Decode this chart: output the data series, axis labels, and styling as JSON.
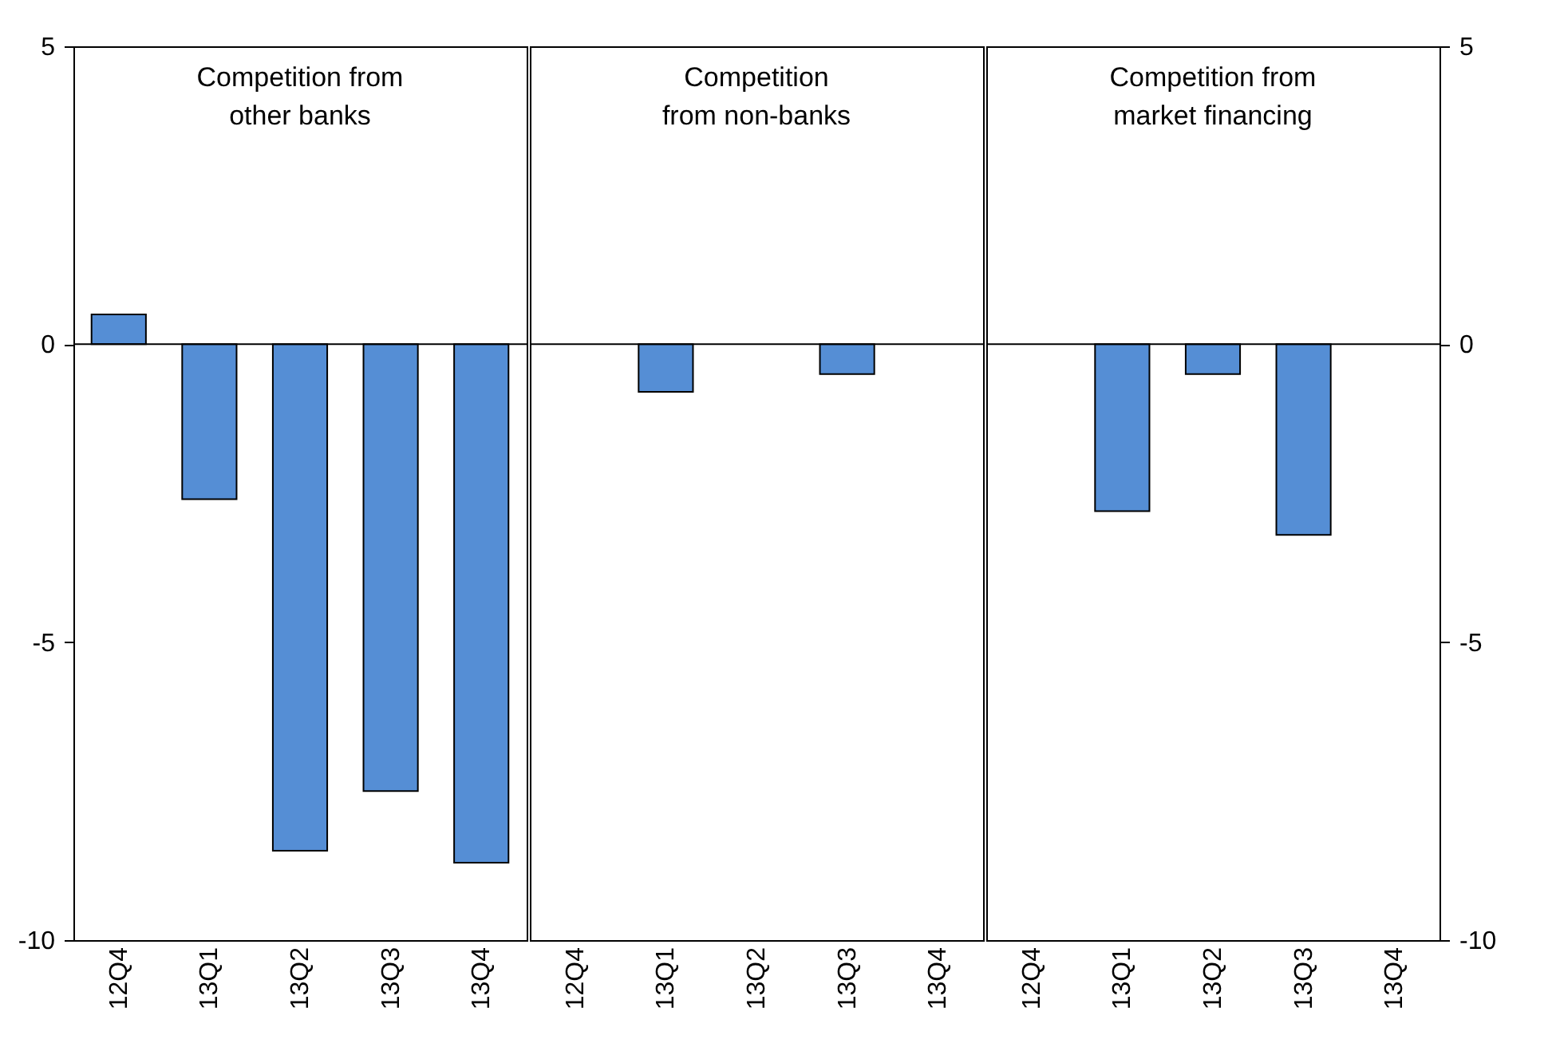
{
  "chart_data": [
    {
      "type": "bar",
      "title": "Competition from\nother banks",
      "categories": [
        "12Q4",
        "13Q1",
        "13Q2",
        "13Q3",
        "13Q4"
      ],
      "values": [
        0.5,
        -2.6,
        -8.5,
        -7.5,
        -8.7
      ],
      "color": "#558ed5",
      "ylim": [
        -10,
        5
      ],
      "yticks": [
        -10,
        -5,
        0,
        5
      ]
    },
    {
      "type": "bar",
      "title": "Competition\nfrom non-banks",
      "categories": [
        "12Q4",
        "13Q1",
        "13Q2",
        "13Q3",
        "13Q4"
      ],
      "values": [
        0,
        -0.8,
        0,
        -0.5,
        0
      ],
      "color": "#558ed5",
      "ylim": [
        -10,
        5
      ],
      "yticks": [
        -10,
        -5,
        0,
        5
      ],
      "tick_labels": "x"
    },
    {
      "type": "bar",
      "title": "Competition from\nmarket financing",
      "categories": [
        "12Q4",
        "13Q1",
        "13Q2",
        "13Q3",
        "13Q4"
      ],
      "values": [
        0,
        -2.8,
        -0.5,
        -3.2,
        0
      ],
      "color": "#558ed5",
      "ylim": [
        -10,
        5
      ],
      "yticks": [
        -10,
        -5,
        0,
        5
      ]
    }
  ]
}
